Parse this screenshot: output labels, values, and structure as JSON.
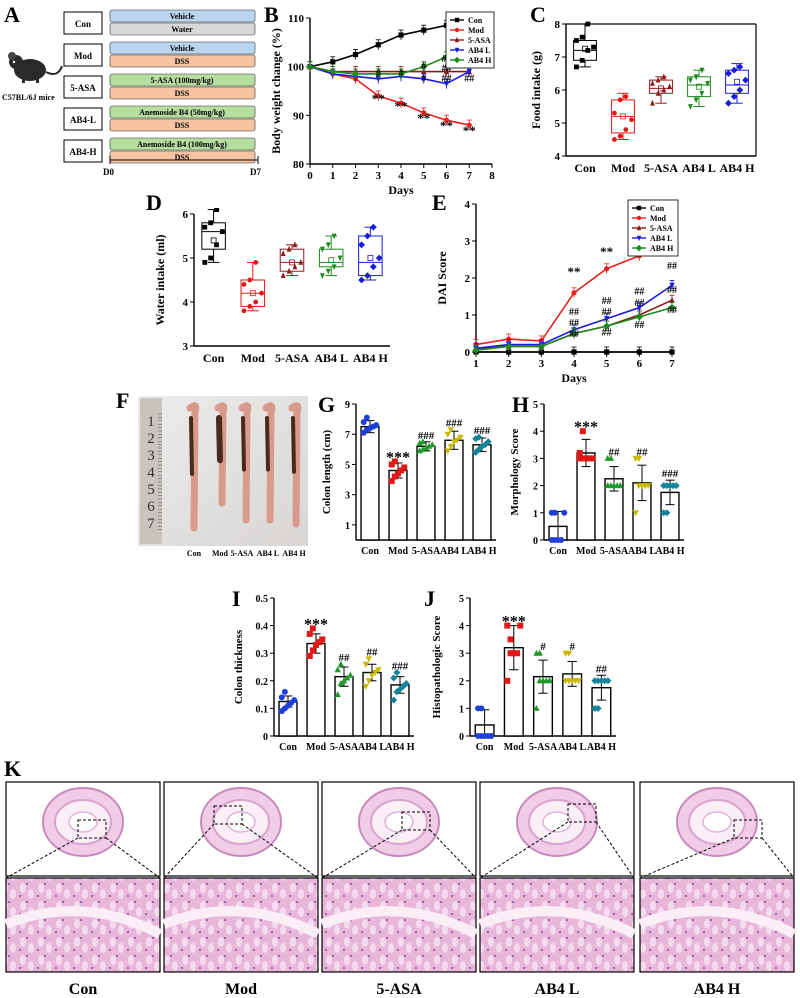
{
  "panel_letters": [
    "A",
    "B",
    "C",
    "D",
    "E",
    "F",
    "G",
    "H",
    "I",
    "J",
    "K"
  ],
  "panelA": {
    "mouse_label": "C57BL/6J mice",
    "rows": [
      {
        "group": "Con",
        "bars": [
          "Vehicle",
          "Water"
        ]
      },
      {
        "group": "Mod",
        "bars": [
          "Vehicle",
          "DSS"
        ]
      },
      {
        "group": "5-ASA",
        "bars": [
          "5-ASA  (100mg/kg)",
          "DSS"
        ]
      },
      {
        "group": "AB4-L",
        "bars": [
          "Anemoside B4 (50mg/kg)",
          "DSS"
        ]
      },
      {
        "group": "AB4-H",
        "bars": [
          "Anemoside B4 (100mg/kg)",
          "DSS"
        ]
      }
    ],
    "timeline": [
      "D0",
      "D7"
    ],
    "colors": {
      "vehicle": "#b9d6ee",
      "water": "#d8d8d8",
      "dss": "#f6c3a3",
      "drug": "#b7dea0"
    }
  },
  "groups": [
    "Con",
    "Mod",
    "5-ASA",
    "AB4 L",
    "AB4 H"
  ],
  "group_colors": {
    "Con": "#000000",
    "Mod": "#e8221e",
    "5-ASA": "#8b1a1a",
    "AB4 L": "#1a1ae0",
    "AB4 H": "#1a8a1a"
  },
  "scatter_colors": [
    "#1f3fd6",
    "#e01818",
    "#1f9a2a",
    "#c8b800",
    "#13849a"
  ],
  "chart_data": [
    {
      "id": "B",
      "type": "line",
      "xlabel": "Days",
      "ylabel": "Body weight change (%)",
      "xlim": [
        0,
        8
      ],
      "ylim": [
        80,
        110
      ],
      "xticks": [
        0,
        1,
        2,
        3,
        4,
        5,
        6,
        7,
        8
      ],
      "yticks": [
        80,
        90,
        100,
        110
      ],
      "x": [
        0,
        1,
        2,
        3,
        4,
        5,
        6,
        7
      ],
      "series": [
        {
          "name": "Con",
          "values": [
            100,
            101,
            102.5,
            104.5,
            106.5,
            107.5,
            108.5,
            108
          ]
        },
        {
          "name": "Mod",
          "values": [
            100,
            98.5,
            97.5,
            94,
            92.5,
            90.5,
            89,
            88
          ]
        },
        {
          "name": "5-ASA",
          "values": [
            100,
            99,
            99,
            99,
            99,
            99,
            99,
            99
          ]
        },
        {
          "name": "AB4 L",
          "values": [
            100,
            98.5,
            98,
            97.5,
            98,
            97.5,
            96.5,
            99
          ]
        },
        {
          "name": "AB4 H",
          "values": [
            100,
            99,
            98.5,
            98.5,
            98.5,
            100,
            102,
            102.5
          ]
        }
      ],
      "annotations": [
        {
          "x": 3,
          "y": 92.5,
          "text": "**"
        },
        {
          "x": 4,
          "y": 91,
          "text": "**"
        },
        {
          "x": 5,
          "y": 88.5,
          "text": "**"
        },
        {
          "x": 6,
          "y": 87,
          "text": "**"
        },
        {
          "x": 7,
          "y": 86,
          "text": "**"
        },
        {
          "x": 3,
          "y": 98,
          "text": "#"
        },
        {
          "x": 4,
          "y": 98,
          "text": "#"
        },
        {
          "x": 5,
          "y": 99.5,
          "text": "#"
        },
        {
          "x": 5,
          "y": 97,
          "text": "#"
        },
        {
          "x": 6,
          "y": 101,
          "text": "##"
        },
        {
          "x": 6,
          "y": 99,
          "text": "##"
        },
        {
          "x": 6,
          "y": 97,
          "text": "##"
        },
        {
          "x": 7,
          "y": 105,
          "text": "##"
        },
        {
          "x": 7,
          "y": 102.5,
          "text": "##"
        },
        {
          "x": 7,
          "y": 100,
          "text": "##"
        },
        {
          "x": 7,
          "y": 97,
          "text": "##"
        }
      ]
    },
    {
      "id": "C",
      "type": "box",
      "ylabel": "Food intake (g)",
      "ylim": [
        4,
        8
      ],
      "yticks": [
        4,
        5,
        6,
        7,
        8
      ],
      "categories": [
        "Con",
        "Mod",
        "5-ASA",
        "AB4 L",
        "AB4 H"
      ],
      "boxes": [
        {
          "min": 6.7,
          "q1": 6.9,
          "median": 7.2,
          "q3": 7.5,
          "max": 8.0,
          "mean": 7.25,
          "points": [
            6.7,
            6.9,
            7.2,
            7.3,
            7.5,
            7.6,
            8.0
          ]
        },
        {
          "min": 4.5,
          "q1": 4.7,
          "median": 5.2,
          "q3": 5.7,
          "max": 5.9,
          "mean": 5.2,
          "points": [
            4.5,
            4.6,
            4.8,
            5.1,
            5.3,
            5.7,
            5.8
          ]
        },
        {
          "min": 5.6,
          "q1": 5.9,
          "median": 6.05,
          "q3": 6.3,
          "max": 6.4,
          "mean": 6.05,
          "points": [
            5.6,
            5.9,
            6.0,
            6.1,
            6.2,
            6.3,
            6.4
          ]
        },
        {
          "min": 5.5,
          "q1": 5.8,
          "median": 6.15,
          "q3": 6.4,
          "max": 6.6,
          "mean": 6.1,
          "points": [
            5.5,
            5.7,
            5.9,
            6.2,
            6.3,
            6.4,
            6.6
          ]
        },
        {
          "min": 5.6,
          "q1": 5.9,
          "median": 6.15,
          "q3": 6.6,
          "max": 6.8,
          "mean": 6.25,
          "points": [
            5.6,
            5.8,
            6.0,
            6.3,
            6.5,
            6.6,
            6.7
          ]
        }
      ]
    },
    {
      "id": "D",
      "type": "box",
      "ylabel": "Water intake (ml)",
      "ylim": [
        3,
        6
      ],
      "yticks": [
        3,
        4,
        5,
        6
      ],
      "categories": [
        "Con",
        "Mod",
        "5-ASA",
        "AB4 L",
        "AB4 H"
      ],
      "boxes": [
        {
          "min": 4.9,
          "q1": 5.2,
          "median": 5.6,
          "q3": 5.8,
          "max": 6.1,
          "mean": 5.4,
          "points": [
            4.9,
            5.0,
            5.3,
            5.6,
            5.7,
            5.8,
            6.1
          ]
        },
        {
          "min": 3.8,
          "q1": 3.9,
          "median": 4.2,
          "q3": 4.5,
          "max": 4.9,
          "mean": 4.2,
          "points": [
            3.8,
            3.9,
            4.0,
            4.2,
            4.4,
            4.5,
            4.9
          ]
        },
        {
          "min": 4.6,
          "q1": 4.7,
          "median": 4.9,
          "q3": 5.2,
          "max": 5.3,
          "mean": 4.9,
          "points": [
            4.6,
            4.7,
            4.8,
            4.9,
            5.1,
            5.2,
            5.3
          ]
        },
        {
          "min": 4.6,
          "q1": 4.8,
          "median": 4.9,
          "q3": 5.2,
          "max": 5.5,
          "mean": 4.95,
          "points": [
            4.6,
            4.7,
            4.8,
            5.0,
            5.2,
            5.3,
            5.5
          ]
        },
        {
          "min": 4.5,
          "q1": 4.6,
          "median": 4.9,
          "q3": 5.5,
          "max": 5.7,
          "mean": 5.0,
          "points": [
            4.5,
            4.6,
            4.8,
            5.0,
            5.3,
            5.5,
            5.7
          ]
        }
      ]
    },
    {
      "id": "E",
      "type": "line",
      "xlabel": "Days",
      "ylabel": "DAI Score",
      "xlim": [
        1,
        7
      ],
      "ylim": [
        0,
        4
      ],
      "xticks": [
        1,
        2,
        3,
        4,
        5,
        6,
        7
      ],
      "yticks": [
        0,
        1,
        2,
        3,
        4
      ],
      "x": [
        1,
        2,
        3,
        4,
        5,
        6,
        7
      ],
      "series": [
        {
          "name": "Con",
          "values": [
            0,
            0,
            0,
            0,
            0,
            0,
            0
          ]
        },
        {
          "name": "Mod",
          "values": [
            0.2,
            0.35,
            0.3,
            1.6,
            2.25,
            2.6,
            2.95
          ]
        },
        {
          "name": "5-ASA",
          "values": [
            0.1,
            0.15,
            0.15,
            0.5,
            0.7,
            1.0,
            1.4
          ]
        },
        {
          "name": "AB4 L",
          "values": [
            0.1,
            0.2,
            0.2,
            0.6,
            0.9,
            1.2,
            1.8
          ]
        },
        {
          "name": "AB4 H",
          "values": [
            0.05,
            0.15,
            0.15,
            0.5,
            0.7,
            0.95,
            1.2
          ]
        }
      ],
      "annotations": [
        {
          "x": 4,
          "y": 2.05,
          "text": "**"
        },
        {
          "x": 5,
          "y": 2.6,
          "text": "**"
        },
        {
          "x": 6,
          "y": 2.95,
          "text": "**"
        },
        {
          "x": 7,
          "y": 3.3,
          "text": "**"
        },
        {
          "x": 4,
          "y": 1.0,
          "text": "##"
        },
        {
          "x": 4,
          "y": 0.7,
          "text": "##"
        },
        {
          "x": 4,
          "y": 0.4,
          "text": "##"
        },
        {
          "x": 5,
          "y": 1.3,
          "text": "##"
        },
        {
          "x": 5,
          "y": 1.0,
          "text": "##"
        },
        {
          "x": 5,
          "y": 0.45,
          "text": "##"
        },
        {
          "x": 6,
          "y": 1.55,
          "text": "##"
        },
        {
          "x": 6,
          "y": 1.25,
          "text": "##"
        },
        {
          "x": 6,
          "y": 0.65,
          "text": "##"
        },
        {
          "x": 7,
          "y": 2.25,
          "text": "##"
        },
        {
          "x": 7,
          "y": 1.6,
          "text": "##"
        },
        {
          "x": 7,
          "y": 1.05,
          "text": "##"
        }
      ]
    },
    {
      "id": "G",
      "type": "bar",
      "ylabel": "Colon length (cm)",
      "ylim": [
        0,
        9
      ],
      "yticks": [
        1,
        3,
        5,
        7,
        9
      ],
      "categories": [
        "Con",
        "Mod",
        "5-ASA",
        "AB4 L",
        "AB4 H"
      ],
      "values": [
        7.5,
        4.6,
        6.2,
        6.6,
        6.3
      ],
      "errors": [
        0.4,
        0.5,
        0.3,
        0.6,
        0.45
      ],
      "points": [
        [
          7.1,
          7.3,
          7.4,
          7.5,
          7.6,
          7.8,
          8.1
        ],
        [
          3.9,
          4.2,
          4.4,
          4.6,
          4.8,
          5.0,
          5.2
        ],
        [
          5.9,
          6.0,
          6.1,
          6.2,
          6.3,
          6.4,
          6.5
        ],
        [
          5.9,
          6.2,
          6.5,
          6.6,
          6.8,
          7.0,
          7.3
        ],
        [
          5.8,
          6.0,
          6.2,
          6.3,
          6.5,
          6.7,
          6.8
        ]
      ],
      "sig": [
        "",
        "***",
        "###",
        "###",
        "###"
      ]
    },
    {
      "id": "H",
      "type": "bar",
      "ylabel": "Morphology Score",
      "ylim": [
        0,
        5
      ],
      "yticks": [
        0,
        1,
        2,
        3,
        4,
        5
      ],
      "categories": [
        "Con",
        "Mod",
        "5-ASA",
        "AB4 L",
        "AB4 H"
      ],
      "values": [
        0.5,
        3.2,
        2.25,
        2.1,
        1.75
      ],
      "errors": [
        0.55,
        0.5,
        0.45,
        0.65,
        0.45
      ],
      "points": [
        [
          0,
          0,
          0,
          0,
          1,
          1,
          1
        ],
        [
          3,
          3,
          3,
          3,
          3,
          3.2,
          4
        ],
        [
          2,
          2,
          2,
          2,
          2,
          3,
          3
        ],
        [
          1,
          2,
          2,
          2,
          2,
          3,
          3
        ],
        [
          1,
          1,
          2,
          2,
          2,
          2,
          2
        ]
      ],
      "sig": [
        "",
        "***",
        "##",
        "##",
        "###"
      ]
    },
    {
      "id": "I",
      "type": "bar",
      "ylabel": "Colon thickness",
      "ylim": [
        0,
        0.5
      ],
      "yticks": [
        0.0,
        0.1,
        0.2,
        0.3,
        0.4,
        0.5
      ],
      "categories": [
        "Con",
        "Mod",
        "5-ASA",
        "AB4 L",
        "AB4 H"
      ],
      "values": [
        0.125,
        0.335,
        0.215,
        0.23,
        0.185
      ],
      "errors": [
        0.02,
        0.035,
        0.035,
        0.03,
        0.03
      ],
      "points": [
        [
          0.09,
          0.1,
          0.11,
          0.12,
          0.13,
          0.14,
          0.16
        ],
        [
          0.29,
          0.31,
          0.33,
          0.34,
          0.35,
          0.37,
          0.39
        ],
        [
          0.15,
          0.19,
          0.2,
          0.21,
          0.22,
          0.24,
          0.26
        ],
        [
          0.18,
          0.2,
          0.22,
          0.23,
          0.24,
          0.26,
          0.28
        ],
        [
          0.13,
          0.16,
          0.17,
          0.18,
          0.19,
          0.21,
          0.23
        ]
      ],
      "sig": [
        "",
        "***",
        "##",
        "##",
        "###"
      ]
    },
    {
      "id": "J",
      "type": "bar",
      "ylabel": "Histopathologic Score",
      "ylim": [
        0,
        5
      ],
      "yticks": [
        0,
        1,
        2,
        3,
        4,
        5
      ],
      "categories": [
        "Con",
        "Mod",
        "5-ASA",
        "AB4 L",
        "AB4 H"
      ],
      "values": [
        0.4,
        3.2,
        2.15,
        2.25,
        1.75
      ],
      "errors": [
        0.55,
        0.8,
        0.6,
        0.45,
        0.45
      ],
      "points": [
        [
          0,
          0,
          0,
          0,
          0,
          1,
          1
        ],
        [
          2,
          3,
          3,
          3,
          4,
          4,
          3.5
        ],
        [
          1,
          2,
          2,
          2,
          2,
          3,
          3
        ],
        [
          2,
          2,
          2,
          2,
          2,
          3,
          3
        ],
        [
          1,
          1,
          2,
          2,
          2,
          2,
          2
        ]
      ],
      "sig": [
        "",
        "***",
        "#",
        "#",
        "##"
      ]
    }
  ],
  "panelF": {
    "ruler_digits": [
      "1",
      "2",
      "3",
      "4",
      "5",
      "6",
      "7"
    ],
    "labels": [
      "Con",
      "Mod",
      "5-ASA",
      "AB4 L",
      "AB4 H"
    ]
  },
  "panelK": {
    "labels": [
      "Con",
      "Mod",
      "5-ASA",
      "AB4 L",
      "AB4 H"
    ]
  }
}
